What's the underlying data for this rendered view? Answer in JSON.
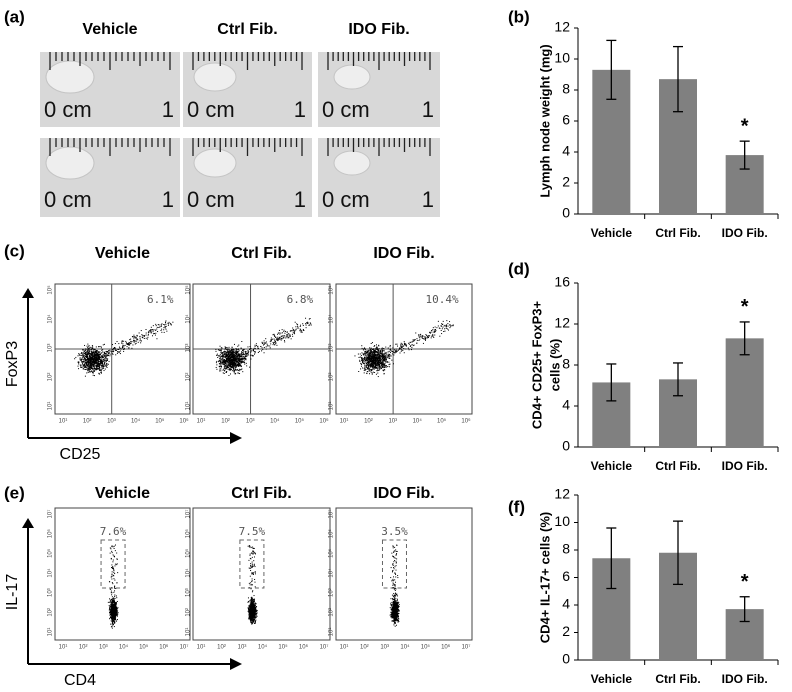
{
  "panels": {
    "a": "(a)",
    "b": "(b)",
    "c": "(c)",
    "d": "(d)",
    "e": "(e)",
    "f": "(f)"
  },
  "photos": {
    "columns": [
      "Vehicle",
      "Ctrl Fib.",
      "IDO Fib."
    ],
    "scale_start": "0 cm",
    "scale_end": "1"
  },
  "flow_c": {
    "columns": [
      "Vehicle",
      "Ctrl Fib.",
      "IDO Fib."
    ],
    "percents": [
      "6.1%",
      "6.8%",
      "10.4%"
    ],
    "y_label": "FoxP3",
    "x_label": "CD25"
  },
  "flow_e": {
    "columns": [
      "Vehicle",
      "Ctrl Fib.",
      "IDO Fib."
    ],
    "percents": [
      "7.6%",
      "7.5%",
      "3.5%"
    ],
    "y_label": "IL-17",
    "x_label": "CD4"
  },
  "flow_tick_labels": {
    "c_x": [
      "10¹",
      "10²",
      "10³",
      "10⁴",
      "10⁵",
      "10⁶"
    ],
    "c_y": [
      "10¹",
      "10²",
      "10³",
      "10⁴",
      "10⁵"
    ],
    "e_x": [
      "10¹",
      "10²",
      "10³",
      "10⁴",
      "10⁵",
      "10⁶",
      "10⁷"
    ],
    "e_y": [
      "10¹",
      "10²",
      "10³",
      "10⁴",
      "10⁵",
      "10⁶",
      "10⁷"
    ]
  },
  "chart_data": [
    {
      "type": "bar",
      "y_label": "Lymph node weight (mg)",
      "categories": [
        "Vehicle",
        "Ctrl Fib.",
        "IDO Fib."
      ],
      "values": [
        9.3,
        8.7,
        3.8
      ],
      "errors": [
        1.9,
        2.1,
        0.9
      ],
      "significance": [
        null,
        null,
        "*"
      ],
      "color": "#808080",
      "ylim": [
        0,
        12
      ],
      "yticks": [
        0,
        2,
        4,
        6,
        8,
        10,
        12
      ]
    },
    {
      "type": "bar",
      "y_label": [
        "CD4+ CD25+ FoxP3+",
        "cells (%)"
      ],
      "categories": [
        "Vehicle",
        "Ctrl Fib.",
        "IDO Fib."
      ],
      "values": [
        6.3,
        6.6,
        10.6
      ],
      "errors": [
        1.8,
        1.6,
        1.6
      ],
      "significance": [
        null,
        null,
        "*"
      ],
      "color": "#808080",
      "ylim": [
        0,
        16
      ],
      "yticks": [
        0,
        4,
        8,
        12,
        16
      ]
    },
    {
      "type": "bar",
      "y_label": "CD4+ IL-17+ cells  (%)",
      "categories": [
        "Vehicle",
        "Ctrl Fib.",
        "IDO Fib."
      ],
      "values": [
        7.4,
        7.8,
        3.7
      ],
      "errors": [
        2.2,
        2.3,
        0.9
      ],
      "significance": [
        null,
        null,
        "*"
      ],
      "color": "#808080",
      "ylim": [
        0,
        12
      ],
      "yticks": [
        0,
        2,
        4,
        6,
        8,
        10,
        12
      ]
    }
  ]
}
